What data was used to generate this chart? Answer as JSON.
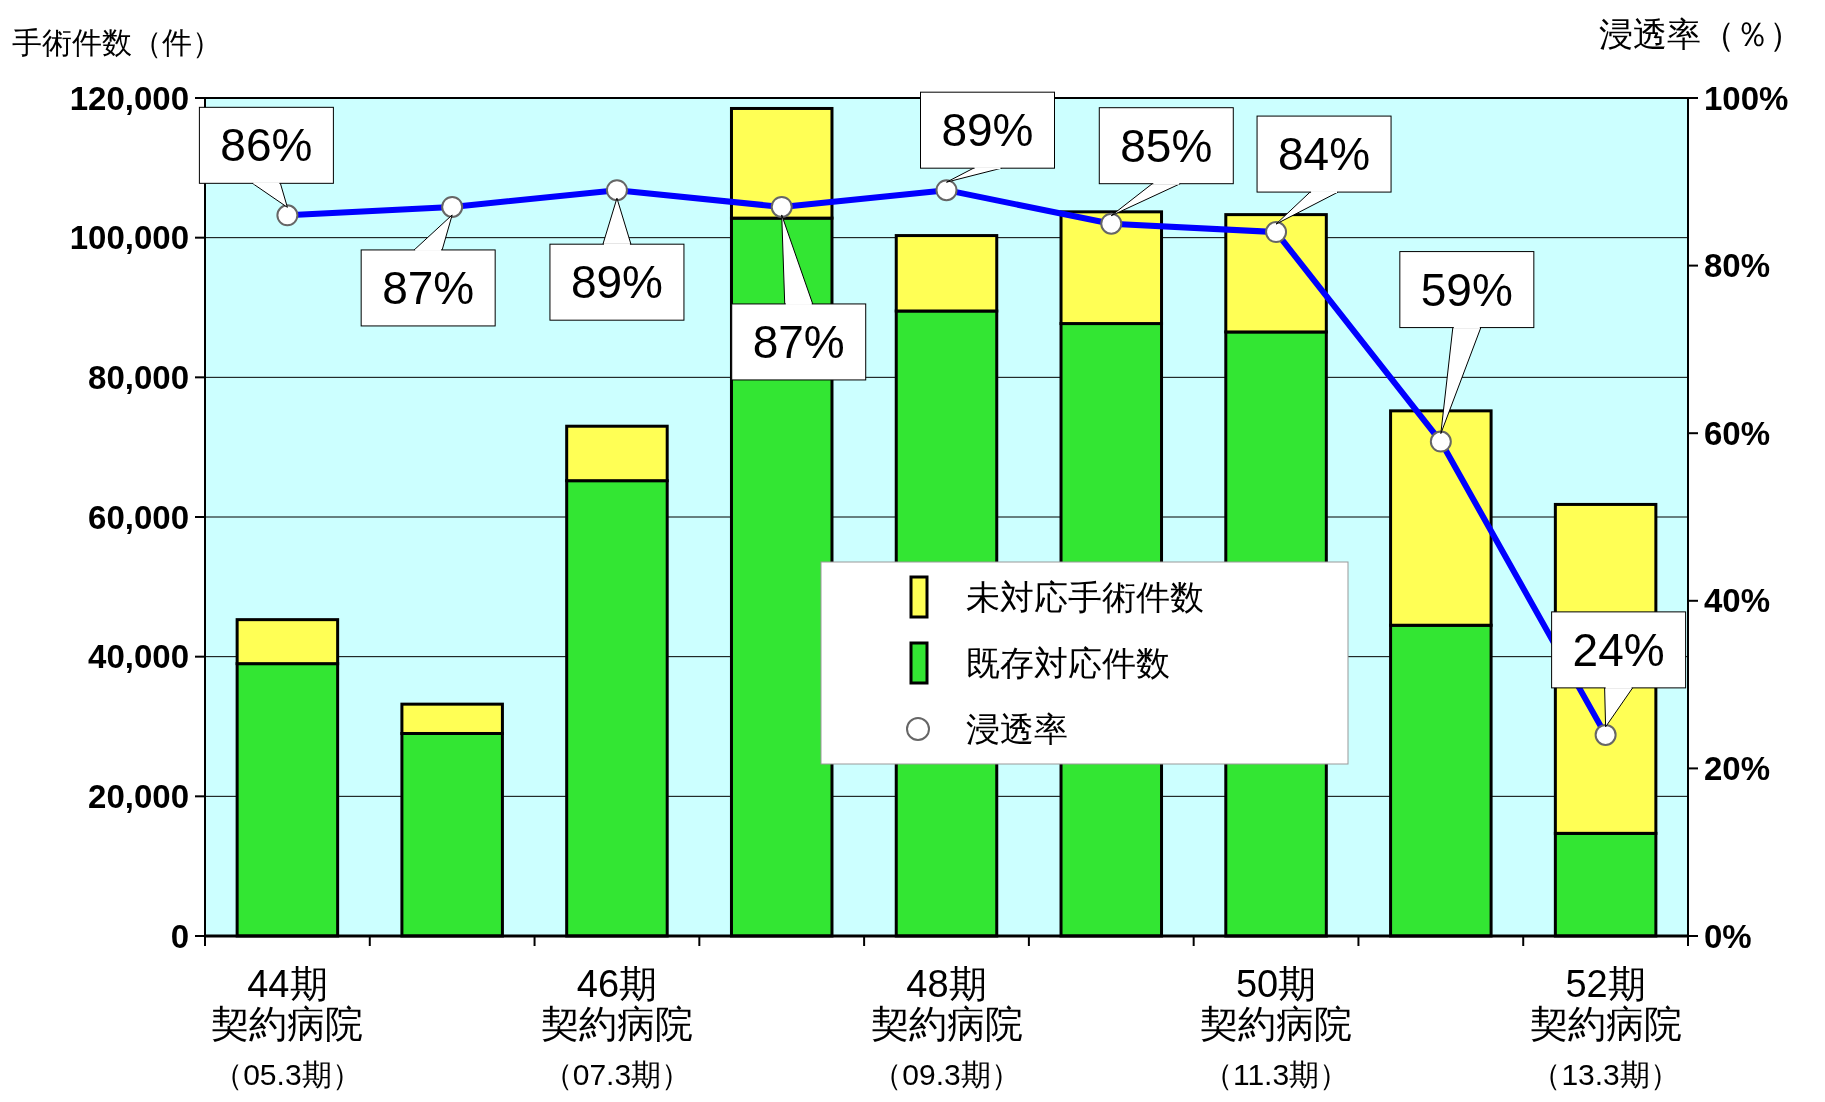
{
  "chart_data": {
    "type": "bar",
    "stacked": true,
    "ylabel": "手術件数（件）",
    "y2label": "浸透率（％）",
    "categories": [
      "44期契約病院",
      null,
      "46期契約病院",
      null,
      "48期契約病院",
      null,
      "50期契約病院",
      null,
      "52期契約病院"
    ],
    "annotations": [
      "（05.3期）",
      "（07.3期）",
      "（09.3期）",
      "（11.3期）",
      "（13.3期）"
    ],
    "series": [
      {
        "name": "既存対応件数",
        "color": "#33e633",
        "values": [
          39000,
          29000,
          65200,
          102800,
          89500,
          87700,
          86500,
          44500,
          14700
        ]
      },
      {
        "name": "未対応手術件数",
        "color": "#ffff55",
        "values": [
          6300,
          4200,
          7800,
          15700,
          10800,
          16000,
          16800,
          30700,
          47100
        ]
      },
      {
        "name": "浸透率",
        "type": "line",
        "axis": "y2",
        "color": "#0000ff",
        "marker": "circle",
        "values": [
          86,
          87,
          89,
          87,
          89,
          85,
          84,
          59,
          24
        ],
        "value_labels": [
          "86%",
          "87%",
          "89%",
          "87%",
          "89%",
          "85%",
          "84%",
          "59%",
          "24%"
        ]
      }
    ],
    "ylim": [
      0,
      120000
    ],
    "yticks": [
      0,
      {
        "value": 20000,
        "label": "20,000"
      },
      {
        "value": 40000,
        "label": "40,000"
      },
      {
        "value": 60000,
        "label": "60,000"
      },
      {
        "value": 80000,
        "label": "80,000"
      },
      {
        "value": 100000,
        "label": "100,000"
      },
      {
        "value": 120000,
        "label": "120,000"
      }
    ],
    "y2lim": [
      0,
      100
    ],
    "y2ticks": [
      {
        "value": 0,
        "label": "0%"
      },
      {
        "value": 20,
        "label": "20%"
      },
      {
        "value": 40,
        "label": "40%"
      },
      {
        "value": 60,
        "label": "60%"
      },
      {
        "value": 80,
        "label": "80%"
      },
      {
        "value": 100,
        "label": "100%"
      }
    ],
    "grid": "y",
    "legend": "center right"
  }
}
